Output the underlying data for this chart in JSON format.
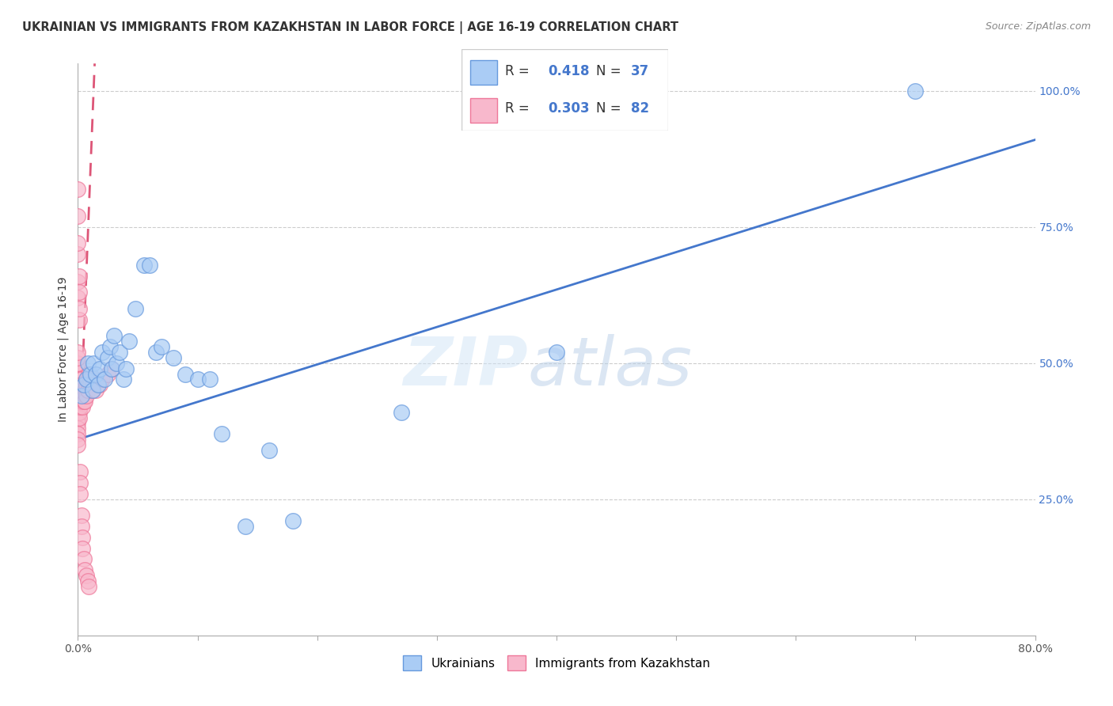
{
  "title": "UKRAINIAN VS IMMIGRANTS FROM KAZAKHSTAN IN LABOR FORCE | AGE 16-19 CORRELATION CHART",
  "source": "Source: ZipAtlas.com",
  "ylabel": "In Labor Force | Age 16-19",
  "xlim": [
    0.0,
    0.8
  ],
  "ylim": [
    0.0,
    1.05
  ],
  "x_ticks": [
    0.0,
    0.1,
    0.2,
    0.3,
    0.4,
    0.5,
    0.6,
    0.7,
    0.8
  ],
  "x_tick_labels": [
    "0.0%",
    "",
    "",
    "",
    "",
    "",
    "",
    "",
    "80.0%"
  ],
  "y_ticks_right": [
    0.25,
    0.5,
    0.75,
    1.0
  ],
  "y_tick_labels_right": [
    "25.0%",
    "50.0%",
    "75.0%",
    "100.0%"
  ],
  "ukrainians": {
    "color": "#aaccf5",
    "edge_color": "#6699dd",
    "trend_color": "#4477cc",
    "x": [
      0.003,
      0.005,
      0.007,
      0.008,
      0.01,
      0.012,
      0.013,
      0.015,
      0.017,
      0.018,
      0.02,
      0.022,
      0.025,
      0.027,
      0.028,
      0.03,
      0.032,
      0.035,
      0.038,
      0.04,
      0.043,
      0.048,
      0.055,
      0.06,
      0.065,
      0.07,
      0.08,
      0.09,
      0.1,
      0.11,
      0.12,
      0.14,
      0.16,
      0.18,
      0.27,
      0.4,
      0.7
    ],
    "y": [
      0.44,
      0.46,
      0.47,
      0.5,
      0.48,
      0.45,
      0.5,
      0.48,
      0.46,
      0.49,
      0.52,
      0.47,
      0.51,
      0.53,
      0.49,
      0.55,
      0.5,
      0.52,
      0.47,
      0.49,
      0.54,
      0.6,
      0.68,
      0.68,
      0.52,
      0.53,
      0.51,
      0.48,
      0.47,
      0.47,
      0.37,
      0.2,
      0.34,
      0.21,
      0.41,
      0.52,
      1.0
    ],
    "trend_x": [
      0.0,
      0.8
    ],
    "trend_y": [
      0.36,
      0.91
    ]
  },
  "kazakhstan": {
    "color": "#f8b8cc",
    "edge_color": "#ee7799",
    "trend_color": "#dd5577",
    "x": [
      0.0,
      0.0,
      0.0,
      0.0,
      0.0,
      0.0,
      0.0,
      0.0,
      0.0,
      0.0,
      0.0,
      0.0,
      0.0,
      0.0,
      0.0,
      0.0,
      0.0,
      0.001,
      0.001,
      0.001,
      0.001,
      0.001,
      0.001,
      0.001,
      0.002,
      0.002,
      0.002,
      0.002,
      0.002,
      0.002,
      0.003,
      0.003,
      0.003,
      0.003,
      0.003,
      0.004,
      0.004,
      0.004,
      0.004,
      0.005,
      0.005,
      0.005,
      0.006,
      0.006,
      0.006,
      0.007,
      0.007,
      0.008,
      0.008,
      0.009,
      0.009,
      0.01,
      0.01,
      0.012,
      0.012,
      0.015,
      0.018,
      0.02,
      0.025,
      0.028,
      0.0,
      0.0,
      0.0,
      0.0,
      0.0,
      0.0,
      0.001,
      0.001,
      0.001,
      0.001,
      0.002,
      0.002,
      0.002,
      0.003,
      0.003,
      0.004,
      0.004,
      0.005,
      0.006,
      0.007,
      0.008,
      0.009
    ],
    "y": [
      0.42,
      0.44,
      0.46,
      0.47,
      0.48,
      0.49,
      0.5,
      0.51,
      0.52,
      0.43,
      0.41,
      0.4,
      0.39,
      0.38,
      0.37,
      0.36,
      0.35,
      0.46,
      0.47,
      0.44,
      0.43,
      0.42,
      0.41,
      0.4,
      0.47,
      0.46,
      0.45,
      0.44,
      0.43,
      0.42,
      0.47,
      0.46,
      0.45,
      0.44,
      0.43,
      0.45,
      0.44,
      0.43,
      0.42,
      0.46,
      0.44,
      0.43,
      0.45,
      0.44,
      0.43,
      0.46,
      0.44,
      0.47,
      0.45,
      0.48,
      0.46,
      0.47,
      0.46,
      0.46,
      0.45,
      0.45,
      0.46,
      0.47,
      0.48,
      0.49,
      0.62,
      0.65,
      0.7,
      0.72,
      0.77,
      0.82,
      0.58,
      0.6,
      0.63,
      0.66,
      0.3,
      0.28,
      0.26,
      0.22,
      0.2,
      0.18,
      0.16,
      0.14,
      0.12,
      0.11,
      0.1,
      0.09
    ],
    "trend_x": [
      0.003,
      0.014
    ],
    "trend_y": [
      0.44,
      1.05
    ]
  },
  "watermark_zip": "ZIP",
  "watermark_atlas": "atlas",
  "background_color": "#ffffff",
  "grid_color": "#cccccc",
  "title_fontsize": 10.5,
  "axis_label_fontsize": 10,
  "tick_fontsize": 10
}
